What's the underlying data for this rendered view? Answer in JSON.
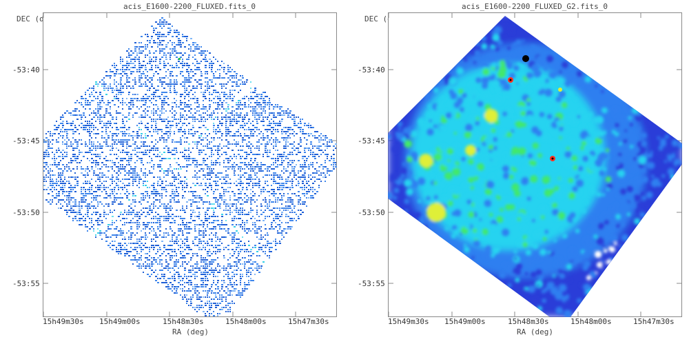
{
  "chart_data": [
    {
      "type": "heatmap",
      "title": "acis_E1600-2200_FLUXED.fits_0",
      "xlabel": "RA (deg)",
      "ylabel": "DEC (deg)",
      "x_ticks": [
        "15h49m30s",
        "15h49m00s",
        "15h48m30s",
        "15h48m00s",
        "15h47m30s"
      ],
      "y_ticks": [
        "-53:40",
        "-53:45",
        "-53:50",
        "-53:55"
      ],
      "style": "sparse-pixels",
      "colors": [
        "#1f5fd6",
        "#3e86ec",
        "#7fb6f7",
        "#35d0e8",
        "#66e0f0"
      ],
      "bright_source_color": "#22cc44"
    },
    {
      "type": "heatmap",
      "title": "acis_E1600-2200_FLUXED_G2.fits_0",
      "xlabel": "RA (deg)",
      "ylabel": "DEC (deg)",
      "x_ticks": [
        "15h49m30s",
        "15h49m00s",
        "15h48m30s",
        "15h48m00s",
        "15h47m30s"
      ],
      "y_ticks": [
        "-53:40",
        "-53:45",
        "-53:50",
        "-53:55"
      ],
      "style": "smoothed",
      "colors": [
        "#2c3ed8",
        "#2f7ff0",
        "#26d3f0",
        "#43e86a",
        "#dfef37"
      ],
      "source_colors": [
        "#ff3020",
        "#000000"
      ]
    }
  ]
}
